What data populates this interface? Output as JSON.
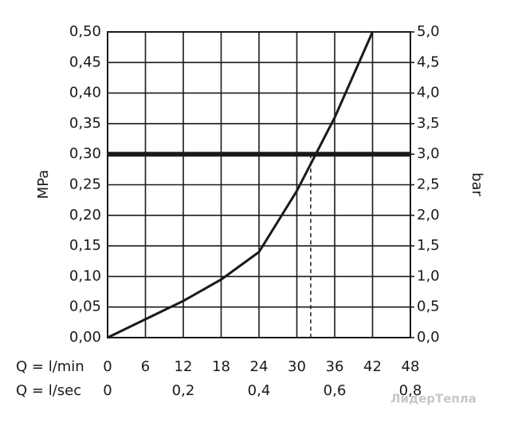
{
  "chart_data": {
    "type": "line",
    "y_label": "MPa",
    "y2_label": "bar",
    "x_label": "Q = l/min",
    "x2_label": "Q = l/sec",
    "x": [
      0,
      6,
      12,
      18,
      24,
      30,
      36,
      42
    ],
    "values": [
      0,
      0.03,
      0.06,
      0.095,
      0.14,
      0.24,
      0.36,
      0.5
    ],
    "color": "#1a1a1a",
    "reference_line": 0.3,
    "intersection_x": 32.2,
    "xlim": [
      0,
      48
    ],
    "xticks": [
      0,
      6,
      12,
      18,
      24,
      30,
      36,
      42,
      48
    ],
    "x2lim": [
      0,
      0.8
    ],
    "x2ticks": [
      0,
      {
        "value": 0.2,
        "label": "0,2"
      },
      {
        "value": 0.4,
        "label": "0,4"
      },
      {
        "value": 0.6,
        "label": "0,6"
      },
      {
        "value": 0.8,
        "label": "0,8"
      }
    ],
    "ylim": [
      0,
      0.5
    ],
    "yticks": [
      {
        "value": 0,
        "label": "0,00"
      },
      {
        "value": 0.05,
        "label": "0,05"
      },
      {
        "value": 0.1,
        "label": "0,10"
      },
      {
        "value": 0.15,
        "label": "0,15"
      },
      {
        "value": 0.2,
        "label": "0,20"
      },
      {
        "value": 0.25,
        "label": "0,25"
      },
      {
        "value": 0.3,
        "label": "0,30"
      },
      {
        "value": 0.35,
        "label": "0,35"
      },
      {
        "value": 0.4,
        "label": "0,40"
      },
      {
        "value": 0.45,
        "label": "0,45"
      },
      {
        "value": 0.5,
        "label": "0,50"
      }
    ],
    "y2lim": [
      0,
      5
    ],
    "y2ticks": [
      {
        "value": 0,
        "label": "0,0"
      },
      {
        "value": 0.5,
        "label": "0,5"
      },
      {
        "value": 1,
        "label": "1,0"
      },
      {
        "value": 1.5,
        "label": "1,5"
      },
      {
        "value": 2,
        "label": "2,0"
      },
      {
        "value": 2.5,
        "label": "2,5"
      },
      {
        "value": 3,
        "label": "3,0"
      },
      {
        "value": 3.5,
        "label": "3,5"
      },
      {
        "value": 4,
        "label": "4,0"
      },
      {
        "value": 4.5,
        "label": "4,5"
      },
      {
        "value": 5,
        "label": "5,0"
      }
    ],
    "grid": true,
    "watermark": "ЛидерТепла"
  }
}
